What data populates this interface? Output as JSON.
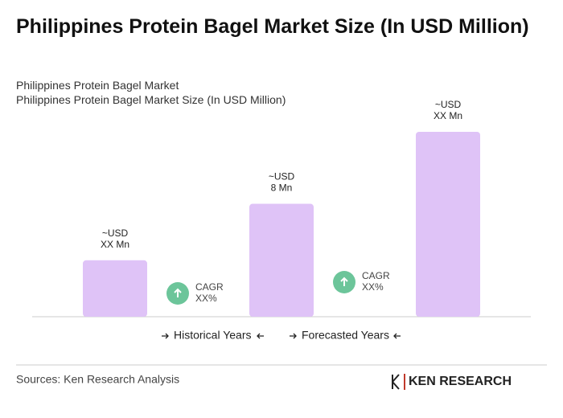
{
  "chart_data": {
    "type": "bar",
    "title": "Philippines Protein Bagel Market Size (In USD Million)",
    "subtitle": [
      "Philippines Protein Bagel Market",
      "Philippines Protein Bagel Market Size (In USD Million)"
    ],
    "categories": [
      null,
      null,
      null
    ],
    "values": [
      4,
      8,
      13.1
    ],
    "value_labels": [
      [
        "~USD",
        "XX Mn"
      ],
      [
        "~USD",
        "8 Mn"
      ],
      [
        "~USD",
        "XX Mn"
      ]
    ],
    "color": "#dfc3f7",
    "cagr": [
      {
        "label": "CAGR",
        "value": "XX%"
      },
      {
        "label": "CAGR",
        "value": "XX%"
      }
    ],
    "cagr_color": "#6cc59a",
    "legend": [
      "Historical Years",
      "Forecasted Years"
    ],
    "source": "Sources: Ken Research Analysis",
    "logo": "KEN RESEARCH"
  }
}
